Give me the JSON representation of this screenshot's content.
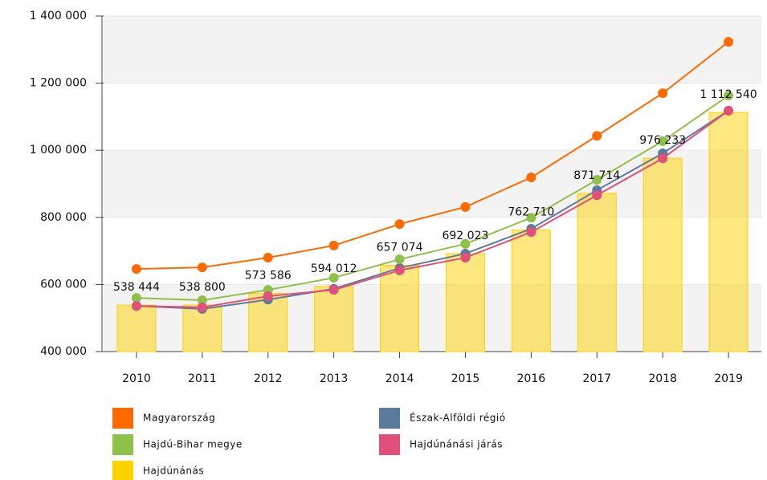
{
  "chart_data": {
    "type": "bar",
    "categories": [
      "2010",
      "2011",
      "2012",
      "2013",
      "2014",
      "2015",
      "2016",
      "2017",
      "2018",
      "2019"
    ],
    "ylim": [
      400000,
      1400000
    ],
    "yticks": [
      {
        "value": 400000,
        "label": "400 000"
      },
      {
        "value": 600000,
        "label": "600 000"
      },
      {
        "value": 800000,
        "label": "800 000"
      },
      {
        "value": 1000000,
        "label": "1 000 000"
      },
      {
        "value": 1200000,
        "label": "1 200 000"
      },
      {
        "value": 1400000,
        "label": "1 400 000"
      }
    ],
    "grid": true,
    "series": [
      {
        "name": "Magyarország",
        "type": "line",
        "color": "#ff6a00",
        "values": [
          646000,
          651000,
          680000,
          716000,
          780000,
          831000,
          919000,
          1043000,
          1170000,
          1323000
        ]
      },
      {
        "name": "Észak-Alföldi régió",
        "type": "line",
        "color": "#5b7b9e",
        "values": [
          536000,
          527000,
          555000,
          587000,
          649000,
          692000,
          766000,
          881000,
          991000,
          1118000
        ]
      },
      {
        "name": "Hajdú-Bihar megye",
        "type": "line",
        "color": "#8fc14a",
        "values": [
          560000,
          553000,
          584000,
          620000,
          675000,
          721000,
          799000,
          912000,
          1027000,
          1163000
        ]
      },
      {
        "name": "Hajdúnánási járás",
        "type": "line",
        "color": "#e0507a",
        "values": [
          536000,
          532000,
          565000,
          584000,
          642000,
          680000,
          756000,
          866000,
          976000,
          1118000
        ]
      },
      {
        "name": "Hajdúnánás",
        "type": "bar",
        "color": "#ffd200",
        "values": [
          538444,
          538800,
          573586,
          594012,
          657074,
          692023,
          762710,
          871714,
          976233,
          1112540
        ],
        "value_labels": [
          "538 444",
          "538 800",
          "573 586",
          "594 012",
          "657 074",
          "692 023",
          "762 710",
          "871 714",
          "976 233",
          "1 112 540"
        ]
      }
    ]
  }
}
